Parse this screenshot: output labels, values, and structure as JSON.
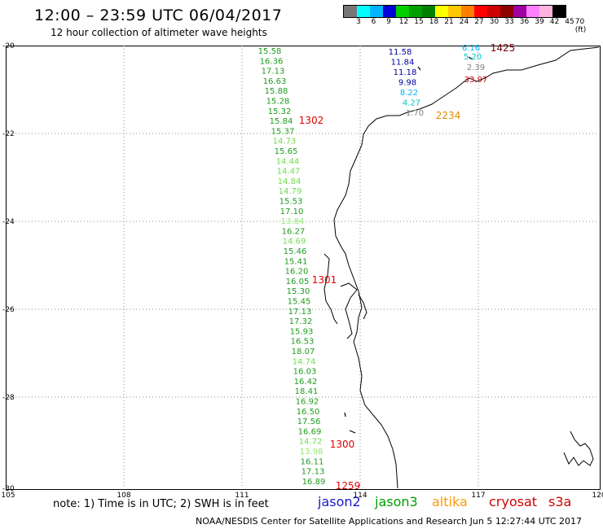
{
  "header": {
    "title": "12:00 – 23:59 UTC 06/04/2017",
    "subtitle": "12 hour collection of altimeter wave heights"
  },
  "legend": {
    "colors": [
      "#777777",
      "#00ffff",
      "#00b4ff",
      "#0000d8",
      "#00d000",
      "#00a000",
      "#008000",
      "#ffff00",
      "#ffc800",
      "#ff8000",
      "#ff0000",
      "#d00000",
      "#900000",
      "#a000a0",
      "#ff80ff",
      "#ffb4e0",
      "#000000"
    ],
    "labels": [
      "3",
      "6",
      "9",
      "12",
      "15",
      "18",
      "21",
      "24",
      "27",
      "30",
      "33",
      "36",
      "39",
      "42",
      "45",
      "70 (ft)"
    ]
  },
  "axes": {
    "lat_labels": [
      "-20",
      "-22",
      "-24",
      "-26",
      "-28",
      "-30"
    ],
    "lon_labels": [
      "105",
      "108",
      "111",
      "114",
      "117",
      "120"
    ]
  },
  "track_values": [
    {
      "v": "15.58",
      "c": "#1e9b1e"
    },
    {
      "v": "16.36",
      "c": "#1e9b1e"
    },
    {
      "v": "17.13",
      "c": "#1e9b1e"
    },
    {
      "v": "16.63",
      "c": "#1e9b1e"
    },
    {
      "v": "15.88",
      "c": "#1e9b1e"
    },
    {
      "v": "15.28",
      "c": "#1e9b1e"
    },
    {
      "v": "15.32",
      "c": "#1e9b1e"
    },
    {
      "v": "15.84",
      "c": "#1e9b1e"
    },
    {
      "v": "15.37",
      "c": "#1e9b1e"
    },
    {
      "v": "14.73",
      "c": "#6fdc4f"
    },
    {
      "v": "15.65",
      "c": "#1e9b1e"
    },
    {
      "v": "14.44",
      "c": "#6fdc4f"
    },
    {
      "v": "14.47",
      "c": "#6fdc4f"
    },
    {
      "v": "14.84",
      "c": "#6fdc4f"
    },
    {
      "v": "14.79",
      "c": "#6fdc4f"
    },
    {
      "v": "15.53",
      "c": "#1e9b1e"
    },
    {
      "v": "17.10",
      "c": "#1e9b1e"
    },
    {
      "v": "13.84",
      "c": "#8fe86f"
    },
    {
      "v": "16.27",
      "c": "#1e9b1e"
    },
    {
      "v": "14.69",
      "c": "#6fdc4f"
    },
    {
      "v": "15.46",
      "c": "#1e9b1e"
    },
    {
      "v": "15.41",
      "c": "#1e9b1e"
    },
    {
      "v": "16.20",
      "c": "#1e9b1e"
    },
    {
      "v": "16.05",
      "c": "#1e9b1e"
    },
    {
      "v": "15.30",
      "c": "#1e9b1e"
    },
    {
      "v": "15.45",
      "c": "#1e9b1e"
    },
    {
      "v": "17.13",
      "c": "#1e9b1e"
    },
    {
      "v": "17.32",
      "c": "#1e9b1e"
    },
    {
      "v": "15.93",
      "c": "#1e9b1e"
    },
    {
      "v": "16.53",
      "c": "#1e9b1e"
    },
    {
      "v": "18.07",
      "c": "#1e9b1e"
    },
    {
      "v": "14.74",
      "c": "#6fdc4f"
    },
    {
      "v": "16.03",
      "c": "#1e9b1e"
    },
    {
      "v": "16.42",
      "c": "#1e9b1e"
    },
    {
      "v": "18.41",
      "c": "#1e9b1e"
    },
    {
      "v": "16.92",
      "c": "#1e9b1e"
    },
    {
      "v": "16.50",
      "c": "#1e9b1e"
    },
    {
      "v": "17.56",
      "c": "#1e9b1e"
    },
    {
      "v": "16.69",
      "c": "#1e9b1e"
    },
    {
      "v": "14.72",
      "c": "#6fdc4f"
    },
    {
      "v": "13.98",
      "c": "#8fe86f"
    },
    {
      "v": "16.11",
      "c": "#1e9b1e"
    },
    {
      "v": "17.13",
      "c": "#1e9b1e"
    },
    {
      "v": "16.89",
      "c": "#1e9b1e"
    }
  ],
  "north_values": [
    {
      "v": "11.58",
      "c": "#0000a0"
    },
    {
      "v": "11.84",
      "c": "#0000a0"
    },
    {
      "v": "11.18",
      "c": "#0000a0"
    },
    {
      "v": "9.98",
      "c": "#0000a0"
    },
    {
      "v": "8.22",
      "c": "#00b4ff"
    },
    {
      "v": "4.27",
      "c": "#00c8c8"
    },
    {
      "v": "1.70",
      "c": "#808080"
    }
  ],
  "ne_values": [
    {
      "v": "6.16",
      "c": "#00b4ff"
    },
    {
      "v": "5.20",
      "c": "#00c8c8"
    },
    {
      "v": "2.39",
      "c": "#808080"
    },
    {
      "v": "33.97",
      "c": "#d00000"
    }
  ],
  "times": [
    {
      "t": "1425",
      "c": "#7a0000"
    },
    {
      "t": "2234",
      "c": "#e08a00"
    },
    {
      "t": "1302",
      "c": "#e00000"
    },
    {
      "t": "1301",
      "c": "#e00000"
    },
    {
      "t": "1300",
      "c": "#e00000"
    },
    {
      "t": "1259",
      "c": "#e00000"
    }
  ],
  "footer": {
    "note": "note: 1) Time is in UTC; 2) SWH is in feet",
    "satellites": [
      {
        "name": "jason2",
        "color": "#1a1acc"
      },
      {
        "name": "jason3",
        "color": "#00a000"
      },
      {
        "name": "altika",
        "color": "#ff9900"
      },
      {
        "name": "cryosat",
        "color": "#cc0000"
      },
      {
        "name": "s3a",
        "color": "#cc0000"
      }
    ],
    "credit": "NOAA/NESDIS Center for Satellite Applications and Research   Jun  5 12:27:44 UTC 2017"
  }
}
